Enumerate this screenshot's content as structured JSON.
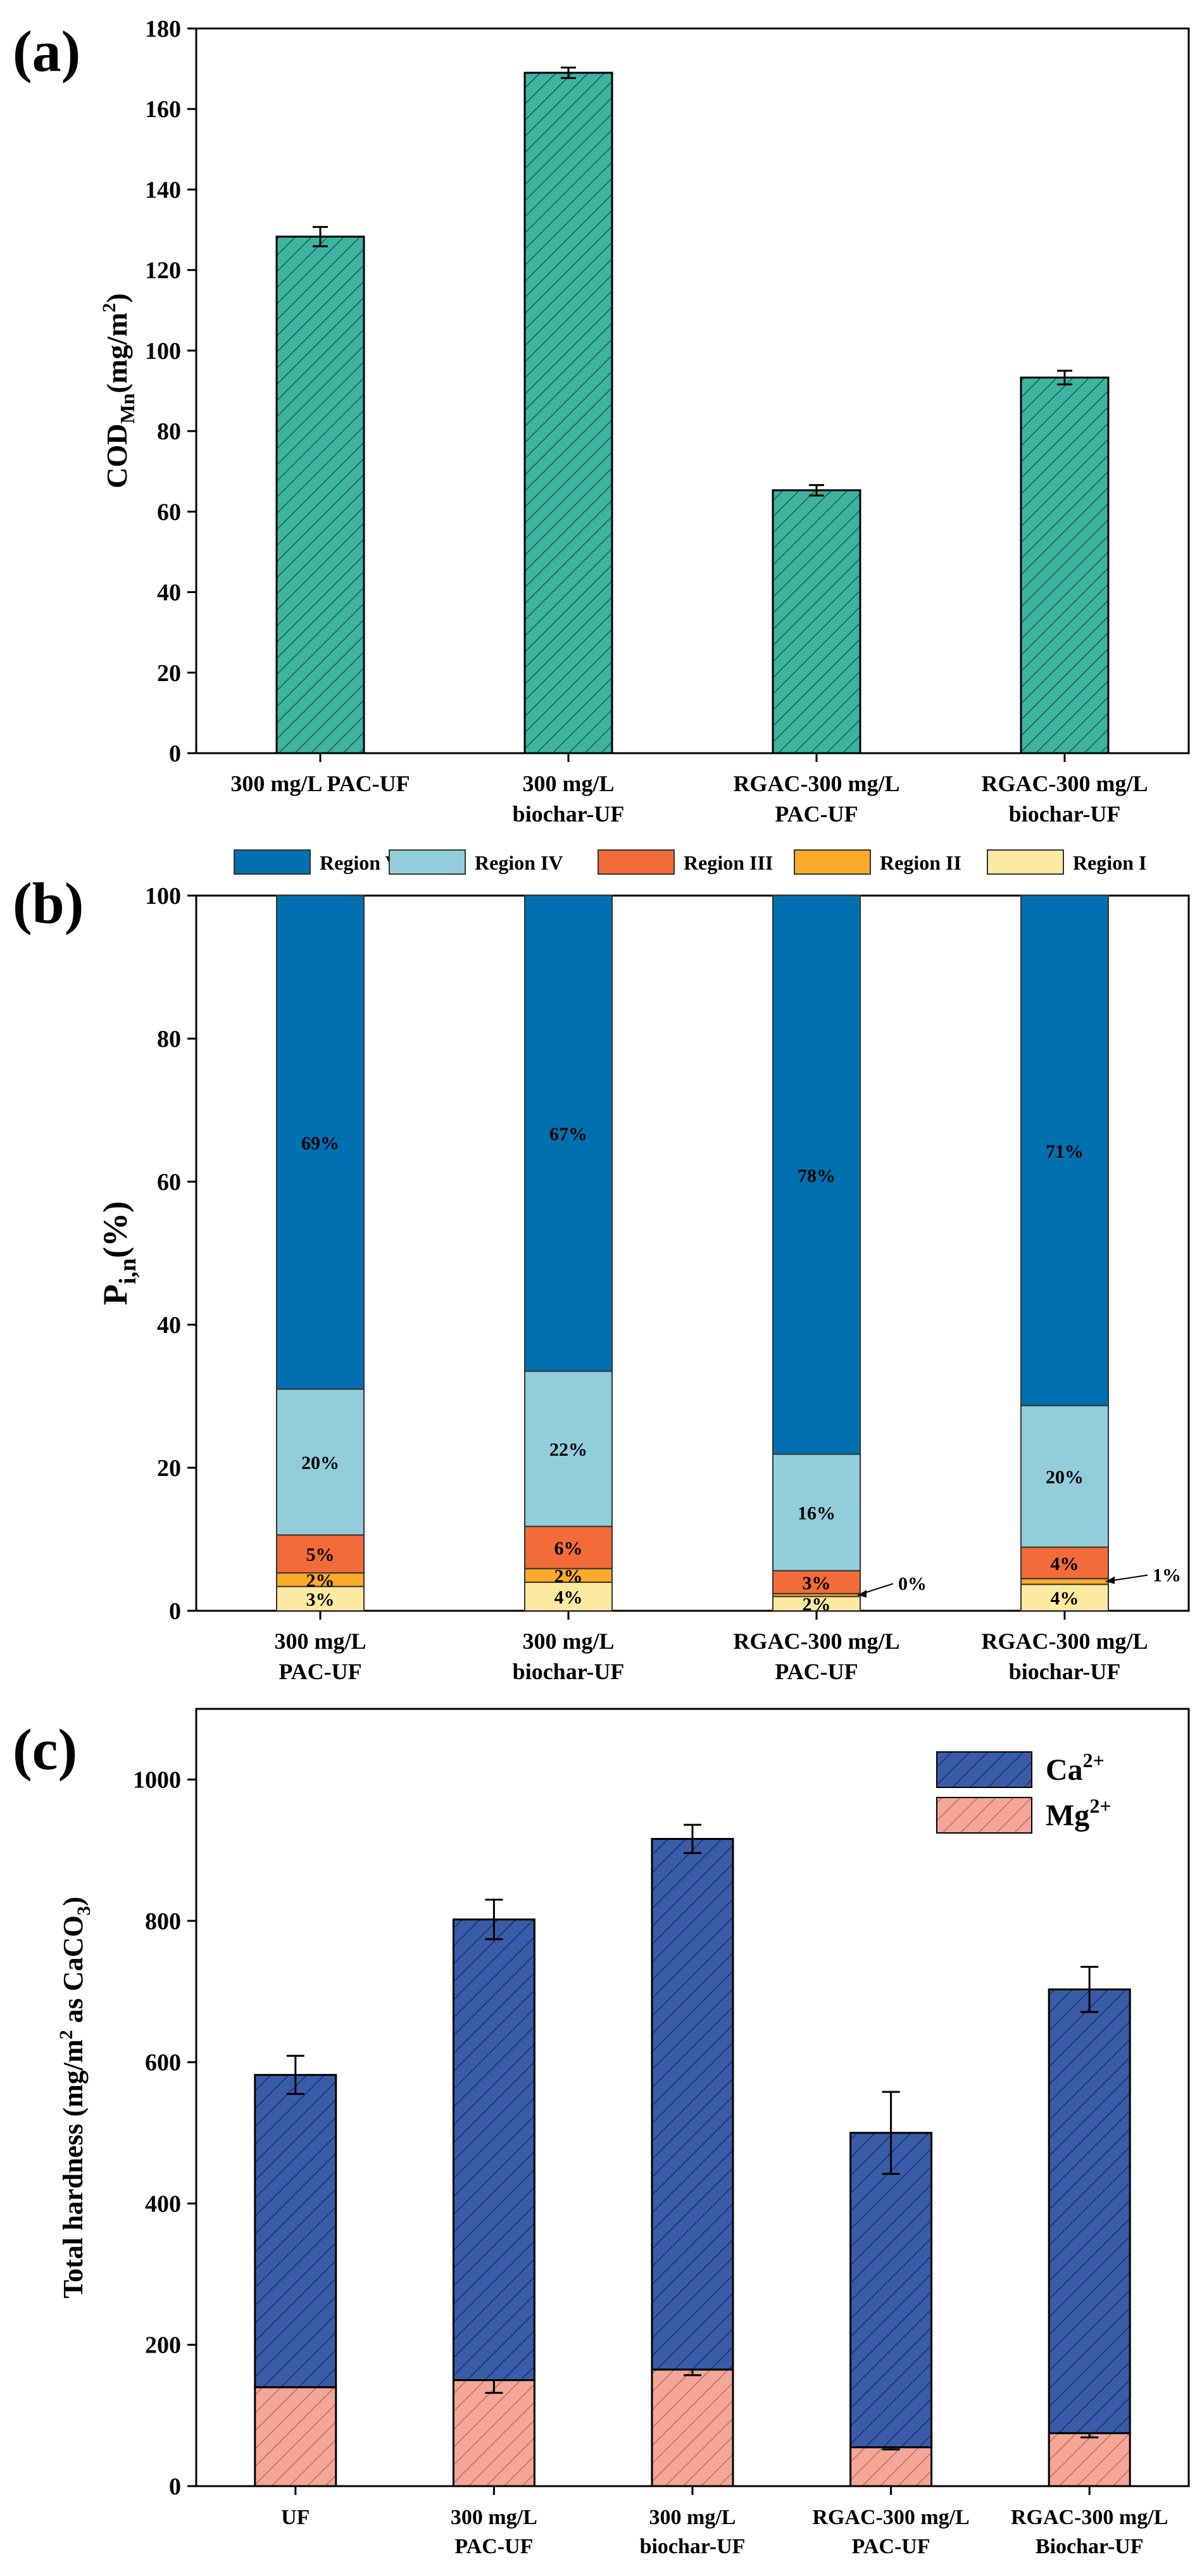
{
  "panels": {
    "a": {
      "label": "(a)"
    },
    "b": {
      "label": "(b)"
    },
    "c": {
      "label": "(c)"
    }
  },
  "colors": {
    "teal": "#3CB4A0",
    "region_v": "#0070B0",
    "region_iv": "#92CDDC",
    "region_iii": "#F26B38",
    "region_ii": "#FBAA2A",
    "region_i": "#FDEAA1",
    "ca": "#3A5CA8",
    "mg": "#F4A698"
  },
  "chart_data": [
    {
      "id": "a",
      "type": "bar",
      "title": "",
      "ylabel": "COD_Mn (mg/m²)",
      "ylabel_parts": {
        "base": "COD",
        "sub": "Mn",
        "unit_pre": "(mg/m",
        "unit_sup": "2",
        "unit_post": ")"
      },
      "xlabel": "",
      "ylim": [
        0,
        180
      ],
      "yticks": [
        0,
        20,
        40,
        60,
        80,
        100,
        120,
        140,
        160,
        180
      ],
      "categories": [
        [
          "300 mg/L PAC-UF"
        ],
        [
          "300 mg/L",
          "biochar-UF"
        ],
        [
          "RGAC-300 mg/L",
          "PAC-UF"
        ],
        [
          "RGAC-300 mg/L",
          "biochar-UF"
        ]
      ],
      "values": [
        128.3,
        169.0,
        65.3,
        93.3
      ],
      "errors": [
        2.4,
        1.3,
        1.3,
        1.7
      ],
      "grid": false
    },
    {
      "id": "b",
      "type": "bar",
      "stacked": true,
      "title": "",
      "ylabel": "P i,n (%)",
      "ylabel_parts": {
        "base": "P",
        "sub": "i,n",
        "post": "(%)"
      },
      "xlabel": "",
      "ylim": [
        0,
        100
      ],
      "yticks": [
        0,
        20,
        40,
        60,
        80,
        100
      ],
      "categories": [
        [
          "300 mg/L",
          "PAC-UF"
        ],
        [
          "300 mg/L",
          "biochar-UF"
        ],
        [
          "RGAC-300 mg/L",
          "PAC-UF"
        ],
        [
          "RGAC-300 mg/L",
          "biochar-UF"
        ]
      ],
      "legend_order": [
        "Region V",
        "Region IV",
        "Region III",
        "Region II",
        "Region I"
      ],
      "legend_placement": "top",
      "series": [
        {
          "name": "Region I",
          "color_key": "region_i",
          "values": [
            3.4,
            4.0,
            2.0,
            3.7
          ],
          "labels": [
            "3%",
            "4%",
            "2%",
            "4%"
          ]
        },
        {
          "name": "Region II",
          "color_key": "region_ii",
          "values": [
            1.9,
            1.9,
            0.4,
            0.8
          ],
          "labels": [
            "2%",
            "2%",
            "0%",
            "1%"
          ]
        },
        {
          "name": "Region III",
          "color_key": "region_iii",
          "values": [
            5.3,
            5.9,
            3.2,
            4.4
          ],
          "labels": [
            "5%",
            "6%",
            "3%",
            "4%"
          ]
        },
        {
          "name": "Region IV",
          "color_key": "region_iv",
          "values": [
            20.4,
            21.7,
            16.3,
            19.8
          ],
          "labels": [
            "20%",
            "22%",
            "16%",
            "20%"
          ]
        },
        {
          "name": "Region V",
          "color_key": "region_v",
          "values": [
            69.0,
            66.5,
            78.1,
            71.3
          ],
          "labels": [
            "69%",
            "67%",
            "78%",
            "71%"
          ]
        }
      ],
      "annotations": [
        {
          "text": "0%",
          "category_index": 2,
          "series": "Region II"
        },
        {
          "text": "1%",
          "category_index": 3,
          "series": "Region II"
        }
      ],
      "grid": false
    },
    {
      "id": "c",
      "type": "bar",
      "stacked": true,
      "title": "",
      "ylabel": "Total hardness (mg/m² as CaCO3)",
      "ylabel_parts": {
        "pre": "Total hardness (mg/m",
        "sup": "2",
        "mid": " as CaCO",
        "sub": "3",
        "post": ")"
      },
      "xlabel": "",
      "ylim": [
        0,
        1100
      ],
      "yticks": [
        0,
        200,
        400,
        600,
        800,
        1000
      ],
      "categories": [
        [
          "UF"
        ],
        [
          "300 mg/L",
          "PAC-UF"
        ],
        [
          "300 mg/L",
          "biochar-UF"
        ],
        [
          "RGAC-300 mg/L",
          "PAC-UF"
        ],
        [
          "RGAC-300 mg/L",
          "Biochar-UF"
        ]
      ],
      "legend_placement": "top-right",
      "legend": [
        {
          "base": "Ca",
          "sup": "2+",
          "color_key": "ca"
        },
        {
          "base": "Mg",
          "sup": "2+",
          "color_key": "mg"
        }
      ],
      "series": [
        {
          "name": "Mg2+",
          "color_key": "mg",
          "values": [
            140,
            150,
            165,
            55,
            75
          ],
          "errors": [
            0,
            18,
            8,
            3,
            6
          ]
        },
        {
          "name": "Ca2+",
          "color_key": "ca",
          "values": [
            442,
            652,
            751,
            445,
            628
          ],
          "errors": [
            27,
            28,
            20,
            58,
            32
          ]
        }
      ],
      "totals": [
        582,
        802,
        916,
        500,
        703
      ],
      "grid": false
    }
  ]
}
